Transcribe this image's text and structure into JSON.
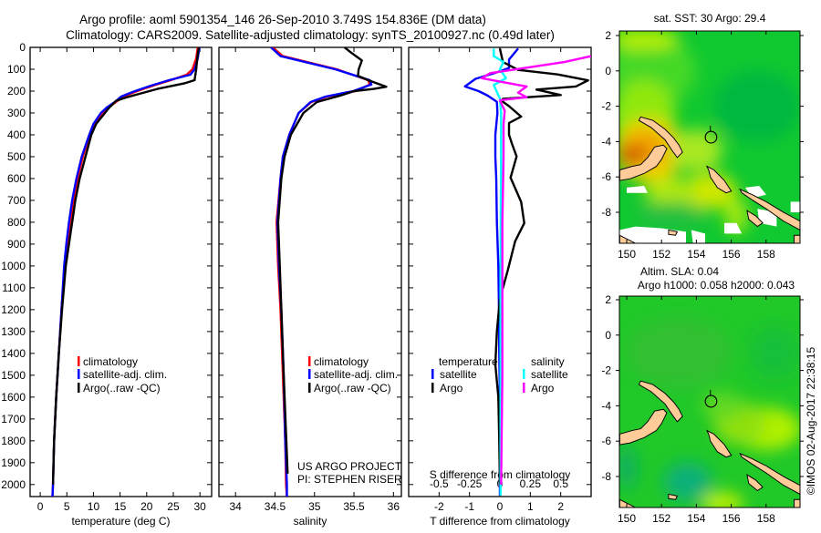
{
  "title": {
    "line1": "Argo profile: aoml 5901354_146 26-Sep-2010 3.749S 154.836E (DM data)",
    "line2": "Climatology: CARS2009. Satellite-adjusted climatology: synTS_20100927.nc (0.49d later)"
  },
  "colors": {
    "climatology": "#ff0000",
    "satellite": "#0000ff",
    "argo": "#000000",
    "salinity_satellite": "#00ffff",
    "salinity_argo": "#ff00ff"
  },
  "depth_axis": {
    "range": [
      0,
      2055
    ],
    "ticks": [
      0,
      100,
      200,
      300,
      400,
      500,
      600,
      700,
      800,
      900,
      1000,
      1100,
      1200,
      1300,
      1400,
      1500,
      1600,
      1700,
      1800,
      1900,
      2000
    ]
  },
  "chart_data": [
    {
      "type": "line",
      "xlabel": "temperature (deg C)",
      "ylabel": "depth",
      "xlim": [
        -1.9,
        32.2
      ],
      "xticks": [
        0,
        5,
        10,
        15,
        20,
        25,
        30
      ],
      "legend": {
        "placement": "bottom-left",
        "entries": [
          "climatology",
          "satellite-adj. clim.",
          "Argo(..raw -QC)"
        ]
      },
      "series": [
        {
          "name": "climatology",
          "color": "#ff0000",
          "depth": [
            0,
            50,
            100,
            125,
            150,
            175,
            200,
            225,
            250,
            275,
            300,
            350,
            400,
            500,
            600,
            700,
            800,
            900,
            1000,
            1200,
            1400,
            1600,
            1800,
            2000,
            2055
          ],
          "values": [
            29.6,
            29.3,
            28.6,
            27.5,
            24.5,
            21.2,
            18.2,
            15.6,
            14.2,
            12.8,
            11.6,
            10.2,
            9.3,
            8.0,
            7.0,
            6.2,
            5.6,
            5.0,
            4.6,
            4.0,
            3.5,
            3.0,
            2.6,
            2.4,
            2.3
          ]
        },
        {
          "name": "satellite-adj. clim.",
          "color": "#0000ff",
          "depth": [
            0,
            50,
            100,
            125,
            150,
            175,
            200,
            225,
            250,
            275,
            300,
            350,
            400,
            500,
            600,
            700,
            800,
            900,
            1000,
            1200,
            1400,
            1600,
            1800,
            2000,
            2055
          ],
          "values": [
            29.9,
            29.6,
            29.0,
            28.2,
            24.2,
            20.8,
            17.8,
            15.2,
            14.0,
            12.5,
            11.4,
            10.0,
            9.2,
            7.8,
            6.8,
            6.0,
            5.4,
            4.9,
            4.5,
            4.0,
            3.5,
            3.0,
            2.6,
            2.4,
            2.3
          ]
        },
        {
          "name": "Argo(..raw -QC)",
          "color": "#000000",
          "depth": [
            0,
            50,
            100,
            150,
            165,
            190,
            210,
            230,
            245,
            280,
            350,
            400,
            500,
            600,
            700,
            800,
            900,
            1000,
            1200,
            1400,
            1600,
            1800,
            2000
          ],
          "values": [
            29.8,
            29.5,
            29.3,
            29.0,
            27.0,
            22.0,
            19.0,
            16.0,
            14.2,
            12.8,
            10.5,
            9.6,
            8.5,
            7.4,
            6.6,
            6.0,
            5.4,
            4.8,
            4.1,
            3.5,
            3.0,
            2.6,
            2.4
          ]
        }
      ]
    },
    {
      "type": "line",
      "xlabel": "salinity",
      "ylabel": "depth",
      "xlim": [
        33.79,
        36.1
      ],
      "xticks": [
        34,
        34.5,
        35,
        35.5,
        36
      ],
      "legend": {
        "placement": "bottom-left",
        "entries": [
          "climatology",
          "satellite-adj. clim.",
          "Argo(..raw -QC)"
        ]
      },
      "annotation": [
        "US ARGO PROJECT",
        "PI: STEPHEN RISER"
      ],
      "series": [
        {
          "name": "climatology",
          "color": "#ff0000",
          "depth": [
            0,
            40,
            100,
            150,
            170,
            200,
            225,
            250,
            300,
            400,
            500,
            600,
            800,
            1000,
            1200,
            1500,
            1800,
            2000,
            2055
          ],
          "values": [
            34.47,
            34.6,
            35.28,
            35.68,
            35.7,
            35.52,
            35.16,
            34.96,
            34.8,
            34.68,
            34.6,
            34.57,
            34.52,
            34.54,
            34.57,
            34.6,
            34.63,
            34.64,
            34.65
          ]
        },
        {
          "name": "satellite-adj. clim.",
          "color": "#0000ff",
          "depth": [
            0,
            40,
            100,
            150,
            170,
            200,
            225,
            250,
            300,
            400,
            500,
            600,
            800,
            1000,
            1200,
            1500,
            1800,
            2000,
            2055
          ],
          "values": [
            34.45,
            34.57,
            35.26,
            35.7,
            35.72,
            35.49,
            35.14,
            34.95,
            34.8,
            34.68,
            34.6,
            34.57,
            34.53,
            34.55,
            34.58,
            34.61,
            34.63,
            34.65,
            34.65
          ]
        },
        {
          "name": "Argo(..raw -QC)",
          "color": "#000000",
          "depth": [
            0,
            20,
            60,
            100,
            130,
            150,
            180,
            190,
            200,
            220,
            250,
            300,
            400,
            500,
            600,
            800,
            1000,
            1500,
            1950
          ],
          "values": [
            35.38,
            35.45,
            35.6,
            35.56,
            35.55,
            35.68,
            35.91,
            35.75,
            35.5,
            35.33,
            35.03,
            34.86,
            34.7,
            34.62,
            34.58,
            34.54,
            34.56,
            34.61,
            34.66
          ]
        }
      ]
    },
    {
      "type": "line",
      "xlabel": "T difference from climatology",
      "xlabel_secondary": "S difference from climatology",
      "xlim": [
        -3,
        3
      ],
      "xticks": [
        -2,
        -1,
        0,
        1,
        2
      ],
      "xticks_secondary": [
        -0.5,
        -0.25,
        0,
        0.25,
        0.5
      ],
      "xticks_secondary_labels": [
        "-0.5",
        "-0.25",
        "0",
        "0.25",
        "0.5"
      ],
      "legend": {
        "placement": "bottom",
        "groups": [
          {
            "title": "temperature",
            "entries": [
              "satellite",
              "Argo"
            ]
          },
          {
            "title": "salinity",
            "entries": [
              "satellite",
              "Argo"
            ]
          }
        ]
      },
      "series": [
        {
          "name": "temperature satellite",
          "axis": "T",
          "color": "#0000ff",
          "depth": [
            5,
            56,
            94,
            119,
            144,
            179,
            200,
            221,
            249,
            300,
            400,
            500,
            600,
            800,
            1000,
            1200,
            1400,
            1600,
            1800,
            2050
          ],
          "values": [
            0.6,
            0.3,
            0.3,
            -0.2,
            -0.8,
            -1.15,
            -0.7,
            -0.4,
            -0.1,
            -0.08,
            -0.15,
            -0.15,
            -0.12,
            -0.1,
            -0.05,
            -0.03,
            -0.02,
            0,
            0,
            0
          ]
        },
        {
          "name": "temperature Argo",
          "axis": "T",
          "color": "#000000",
          "depth": [
            5,
            67,
            103,
            124,
            151,
            179,
            193,
            218,
            235,
            249,
            269,
            317,
            346,
            400,
            442,
            499,
            596,
            707,
            804,
            887,
            1025,
            1150,
            1300,
            1450,
            1600,
            1800,
            2000
          ],
          "values": [
            0,
            0.1,
            0.6,
            1.9,
            2.9,
            2.5,
            1.2,
            2.0,
            0.1,
            0.1,
            0.3,
            0.7,
            0.3,
            0.3,
            0.4,
            0.55,
            0.35,
            0.7,
            0.8,
            0.5,
            0.25,
            0.0,
            -0.1,
            -0.15,
            -0.05,
            -0.02,
            0
          ]
        },
        {
          "name": "salinity satellite",
          "axis": "S",
          "color": "#00ffff",
          "depth": [
            5,
            40,
            67,
            100,
            141,
            172,
            235,
            300,
            500,
            1000,
            1500,
            2050
          ],
          "values": [
            -0.05,
            -0.05,
            0.03,
            0,
            0.05,
            -0.05,
            0,
            0.01,
            0.01,
            0.005,
            0.005,
            0.005
          ]
        },
        {
          "name": "salinity Argo",
          "axis": "S",
          "color": "#ff00ff",
          "depth": [
            40,
            67,
            118,
            141,
            179,
            207,
            228,
            242,
            290,
            350,
            500,
            800,
            1000,
            1500,
            2000
          ],
          "values": [
            0.75,
            0.53,
            -0.08,
            -0.15,
            0.22,
            0.15,
            0.22,
            0,
            0.04,
            0.03,
            0.03,
            0.02,
            0.02,
            0.02,
            0.01
          ]
        }
      ]
    }
  ],
  "legend_labels": {
    "climatology": "climatology",
    "satellite_adj": "satellite-adj. clim.",
    "argo_raw": "Argo(..raw -QC)",
    "temperature": "temperature",
    "salinity": "salinity",
    "satellite": "satellite",
    "argo": "Argo"
  },
  "annotation": {
    "project": "US ARGO PROJECT",
    "pi": "PI: STEPHEN RISER"
  },
  "maps": {
    "sst_title": "sat. SST: 30 Argo: 29.4",
    "sla_title1": "Altim. SLA: 0.04",
    "sla_title2": "Argo h1000: 0.058 h2000: 0.043",
    "lon_ticks": [
      150,
      152,
      154,
      156,
      158
    ],
    "lat_ticks": [
      2,
      0,
      -2,
      -4,
      -6,
      -8
    ],
    "argo_position": {
      "lon": 154.836,
      "lat": -3.749
    }
  },
  "credit": "©IMOS 02-Aug-2017 22:38:15"
}
